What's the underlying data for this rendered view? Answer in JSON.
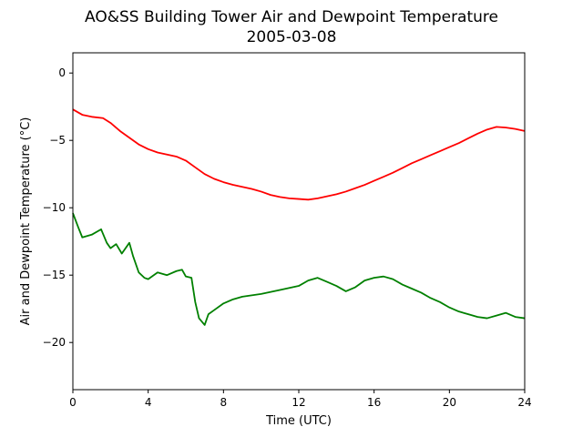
{
  "chart_data": {
    "type": "line",
    "title": "AO&SS Building Tower Air and Dewpoint Temperature",
    "subtitle": "2005-03-08",
    "xlabel": "Time (UTC)",
    "ylabel": "Air and Dewpoint Temperature (°C)",
    "xlim": [
      0,
      24
    ],
    "ylim": [
      -23.5,
      1.5
    ],
    "xticks": [
      0,
      4,
      8,
      12,
      16,
      20,
      24
    ],
    "yticks": [
      0,
      -5,
      -10,
      -15,
      -20
    ],
    "grid": false,
    "series": [
      {
        "color": "#ff0000",
        "points": [
          [
            0,
            -2.7
          ],
          [
            0.5,
            -3.1
          ],
          [
            1,
            -3.25
          ],
          [
            1.6,
            -3.35
          ],
          [
            2,
            -3.7
          ],
          [
            2.5,
            -4.3
          ],
          [
            3,
            -4.8
          ],
          [
            3.5,
            -5.3
          ],
          [
            4,
            -5.65
          ],
          [
            4.5,
            -5.9
          ],
          [
            5,
            -6.05
          ],
          [
            5.5,
            -6.2
          ],
          [
            6,
            -6.5
          ],
          [
            6.5,
            -7.0
          ],
          [
            7,
            -7.5
          ],
          [
            7.5,
            -7.85
          ],
          [
            8,
            -8.1
          ],
          [
            8.5,
            -8.3
          ],
          [
            9,
            -8.45
          ],
          [
            9.5,
            -8.6
          ],
          [
            10,
            -8.8
          ],
          [
            10.5,
            -9.05
          ],
          [
            11,
            -9.2
          ],
          [
            11.5,
            -9.3
          ],
          [
            12,
            -9.35
          ],
          [
            12.5,
            -9.4
          ],
          [
            13,
            -9.3
          ],
          [
            13.5,
            -9.15
          ],
          [
            14,
            -9.0
          ],
          [
            14.5,
            -8.8
          ],
          [
            15,
            -8.55
          ],
          [
            15.5,
            -8.3
          ],
          [
            16,
            -8.0
          ],
          [
            16.5,
            -7.7
          ],
          [
            17,
            -7.4
          ],
          [
            17.5,
            -7.05
          ],
          [
            18,
            -6.7
          ],
          [
            18.5,
            -6.4
          ],
          [
            19,
            -6.1
          ],
          [
            19.5,
            -5.8
          ],
          [
            20,
            -5.5
          ],
          [
            20.5,
            -5.2
          ],
          [
            21,
            -4.85
          ],
          [
            21.5,
            -4.5
          ],
          [
            22,
            -4.2
          ],
          [
            22.5,
            -4.0
          ],
          [
            23,
            -4.05
          ],
          [
            23.5,
            -4.15
          ],
          [
            24,
            -4.3
          ]
        ]
      },
      {
        "color": "#008000",
        "points": [
          [
            0,
            -10.4
          ],
          [
            0.3,
            -11.5
          ],
          [
            0.5,
            -12.2
          ],
          [
            1,
            -12.0
          ],
          [
            1.5,
            -11.6
          ],
          [
            1.8,
            -12.6
          ],
          [
            2,
            -13.0
          ],
          [
            2.3,
            -12.7
          ],
          [
            2.6,
            -13.4
          ],
          [
            3,
            -12.6
          ],
          [
            3.2,
            -13.6
          ],
          [
            3.5,
            -14.8
          ],
          [
            3.8,
            -15.2
          ],
          [
            4,
            -15.3
          ],
          [
            4.5,
            -14.8
          ],
          [
            5,
            -15.0
          ],
          [
            5.5,
            -14.7
          ],
          [
            5.8,
            -14.6
          ],
          [
            6,
            -15.1
          ],
          [
            6.3,
            -15.2
          ],
          [
            6.5,
            -17.0
          ],
          [
            6.7,
            -18.2
          ],
          [
            7,
            -18.7
          ],
          [
            7.2,
            -17.9
          ],
          [
            7.5,
            -17.6
          ],
          [
            8,
            -17.1
          ],
          [
            8.5,
            -16.8
          ],
          [
            9,
            -16.6
          ],
          [
            10,
            -16.4
          ],
          [
            11,
            -16.1
          ],
          [
            12,
            -15.8
          ],
          [
            12.5,
            -15.4
          ],
          [
            13,
            -15.2
          ],
          [
            13.5,
            -15.5
          ],
          [
            14,
            -15.8
          ],
          [
            14.5,
            -16.2
          ],
          [
            15,
            -15.9
          ],
          [
            15.5,
            -15.4
          ],
          [
            16,
            -15.2
          ],
          [
            16.5,
            -15.1
          ],
          [
            17,
            -15.3
          ],
          [
            17.5,
            -15.7
          ],
          [
            18,
            -16.0
          ],
          [
            18.5,
            -16.3
          ],
          [
            19,
            -16.7
          ],
          [
            19.5,
            -17.0
          ],
          [
            20,
            -17.4
          ],
          [
            20.5,
            -17.7
          ],
          [
            21,
            -17.9
          ],
          [
            21.5,
            -18.1
          ],
          [
            22,
            -18.2
          ],
          [
            22.5,
            -18.0
          ],
          [
            23,
            -17.8
          ],
          [
            23.5,
            -18.1
          ],
          [
            24,
            -18.2
          ]
        ]
      }
    ]
  }
}
